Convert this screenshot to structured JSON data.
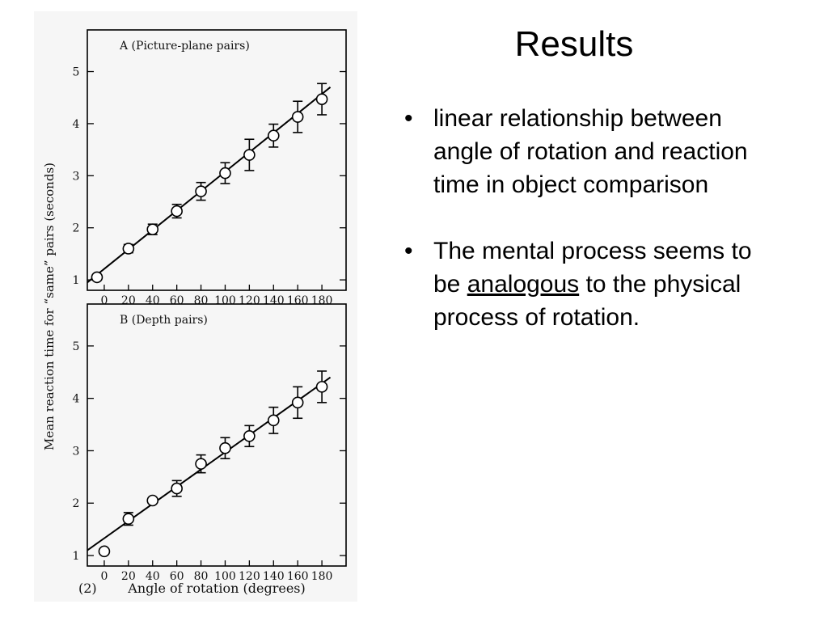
{
  "slide": {
    "title": "Results",
    "bullets": [
      {
        "text": "linear relationship between angle of rotation and reaction time in object comparison"
      },
      {
        "before": "The mental process seems to be ",
        "underlined": "analogous",
        "after": " to the physical process of rotation."
      }
    ],
    "bullet_glyph": "•"
  },
  "figure": {
    "y_axis_label": "Mean reaction time for “same” pairs (seconds)",
    "x_axis_label": "Angle of rotation (degrees)",
    "figure_number": "(2)"
  },
  "chart_data": [
    {
      "type": "scatter",
      "title": "A (Picture-plane pairs)",
      "x_ticks": [
        0,
        20,
        40,
        60,
        80,
        100,
        120,
        140,
        160,
        180
      ],
      "y_ticks": [
        1,
        2,
        3,
        4,
        5
      ],
      "xlim": [
        -14,
        200
      ],
      "ylim": [
        0.8,
        5.8
      ],
      "points": [
        {
          "x": -6,
          "y": 1.05,
          "err": 0
        },
        {
          "x": 20,
          "y": 1.6,
          "err": 0.08
        },
        {
          "x": 40,
          "y": 1.97,
          "err": 0.1
        },
        {
          "x": 60,
          "y": 2.32,
          "err": 0.13
        },
        {
          "x": 80,
          "y": 2.7,
          "err": 0.17
        },
        {
          "x": 100,
          "y": 3.05,
          "err": 0.2
        },
        {
          "x": 120,
          "y": 3.4,
          "err": 0.3
        },
        {
          "x": 140,
          "y": 3.77,
          "err": 0.22
        },
        {
          "x": 160,
          "y": 4.13,
          "err": 0.3
        },
        {
          "x": 180,
          "y": 4.47,
          "err": 0.3
        }
      ],
      "fit_line": {
        "x": [
          -14,
          187
        ],
        "y": [
          0.95,
          4.7
        ]
      },
      "line_color": "#000000"
    },
    {
      "type": "scatter",
      "title": "B (Depth pairs)",
      "x_ticks": [
        0,
        20,
        40,
        60,
        80,
        100,
        120,
        140,
        160,
        180
      ],
      "y_ticks": [
        1,
        2,
        3,
        4,
        5
      ],
      "xlim": [
        -14,
        200
      ],
      "ylim": [
        0.8,
        5.8
      ],
      "points": [
        {
          "x": 0,
          "y": 1.08,
          "err": 0
        },
        {
          "x": 20,
          "y": 1.7,
          "err": 0.12
        },
        {
          "x": 40,
          "y": 2.05,
          "err": 0
        },
        {
          "x": 60,
          "y": 2.28,
          "err": 0.15
        },
        {
          "x": 80,
          "y": 2.75,
          "err": 0.17
        },
        {
          "x": 100,
          "y": 3.05,
          "err": 0.2
        },
        {
          "x": 120,
          "y": 3.28,
          "err": 0.2
        },
        {
          "x": 140,
          "y": 3.58,
          "err": 0.25
        },
        {
          "x": 160,
          "y": 3.92,
          "err": 0.3
        },
        {
          "x": 180,
          "y": 4.22,
          "err": 0.3
        }
      ],
      "fit_line": {
        "x": [
          -14,
          187
        ],
        "y": [
          1.1,
          4.4
        ]
      },
      "line_color": "#000000"
    }
  ]
}
